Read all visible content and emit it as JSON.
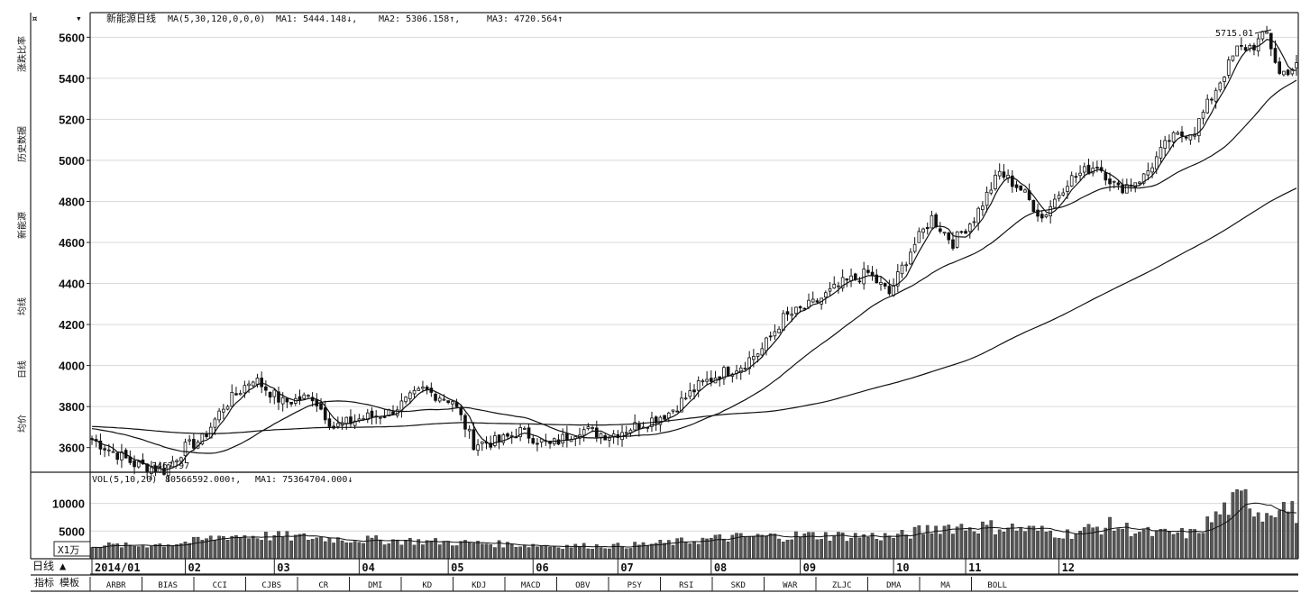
{
  "chart_data": {
    "type": "line",
    "title": "新能源日线",
    "indicator_header": {
      "ma_params": "MA(5,30,120,0,0,0)",
      "ma1": "MA1: 5444.148↓,",
      "ma2": "MA2: 5306.158↑,",
      "ma3": "MA3: 4720.564↑"
    },
    "price_axis": {
      "ylim": [
        3480,
        5720
      ],
      "ticks": [
        3600,
        3800,
        4000,
        4200,
        4400,
        4600,
        4800,
        5000,
        5200,
        5400,
        5600
      ]
    },
    "annotations": {
      "low_label": "3467.97",
      "high_label": "5715.01"
    },
    "close_anchors": [
      {
        "x": 0,
        "y": 3640
      },
      {
        "x": 10,
        "y": 3520
      },
      {
        "x": 17,
        "y": 3490
      },
      {
        "x": 22,
        "y": 3600
      },
      {
        "x": 26,
        "y": 3640
      },
      {
        "x": 31,
        "y": 3800
      },
      {
        "x": 38,
        "y": 3940
      },
      {
        "x": 45,
        "y": 3820
      },
      {
        "x": 52,
        "y": 3850
      },
      {
        "x": 57,
        "y": 3700
      },
      {
        "x": 63,
        "y": 3740
      },
      {
        "x": 70,
        "y": 3770
      },
      {
        "x": 78,
        "y": 3880
      },
      {
        "x": 85,
        "y": 3830
      },
      {
        "x": 90,
        "y": 3620
      },
      {
        "x": 96,
        "y": 3630
      },
      {
        "x": 101,
        "y": 3680
      },
      {
        "x": 108,
        "y": 3610
      },
      {
        "x": 115,
        "y": 3690
      },
      {
        "x": 122,
        "y": 3660
      },
      {
        "x": 130,
        "y": 3720
      },
      {
        "x": 136,
        "y": 3770
      },
      {
        "x": 143,
        "y": 3900
      },
      {
        "x": 148,
        "y": 3960
      },
      {
        "x": 153,
        "y": 4000
      },
      {
        "x": 158,
        "y": 4080
      },
      {
        "x": 163,
        "y": 4230
      },
      {
        "x": 170,
        "y": 4300
      },
      {
        "x": 177,
        "y": 4400
      },
      {
        "x": 183,
        "y": 4450
      },
      {
        "x": 188,
        "y": 4350
      },
      {
        "x": 193,
        "y": 4560
      },
      {
        "x": 198,
        "y": 4720
      },
      {
        "x": 203,
        "y": 4600
      },
      {
        "x": 208,
        "y": 4720
      },
      {
        "x": 214,
        "y": 4940
      },
      {
        "x": 219,
        "y": 4860
      },
      {
        "x": 224,
        "y": 4720
      },
      {
        "x": 230,
        "y": 4900
      },
      {
        "x": 237,
        "y": 4980
      },
      {
        "x": 242,
        "y": 4860
      },
      {
        "x": 248,
        "y": 4920
      },
      {
        "x": 254,
        "y": 5100
      },
      {
        "x": 260,
        "y": 5150
      },
      {
        "x": 265,
        "y": 5350
      },
      {
        "x": 270,
        "y": 5540
      },
      {
        "x": 274,
        "y": 5560
      },
      {
        "x": 277,
        "y": 5620
      },
      {
        "x": 280,
        "y": 5420
      },
      {
        "x": 283,
        "y": 5450
      }
    ],
    "series": [
      {
        "name": "MA1",
        "values": []
      },
      {
        "name": "MA2",
        "values": []
      },
      {
        "name": "MA3",
        "values": []
      }
    ],
    "volume_header": {
      "params": "VOL(5,10,20)",
      "vol": "80566592.000↑,",
      "ma1": "MA1: 75364704.000↓"
    },
    "volume_axis": {
      "ylim": [
        0,
        14000
      ],
      "ticks": [
        5000,
        10000
      ],
      "unit_label": "X1万"
    },
    "volume_anchors": [
      {
        "x": 0,
        "y": 2500
      },
      {
        "x": 10,
        "y": 2300
      },
      {
        "x": 20,
        "y": 2800
      },
      {
        "x": 25,
        "y": 3200
      },
      {
        "x": 32,
        "y": 4200
      },
      {
        "x": 45,
        "y": 4000
      },
      {
        "x": 60,
        "y": 3500
      },
      {
        "x": 75,
        "y": 3200
      },
      {
        "x": 90,
        "y": 2800
      },
      {
        "x": 110,
        "y": 2300
      },
      {
        "x": 125,
        "y": 2300
      },
      {
        "x": 135,
        "y": 2800
      },
      {
        "x": 150,
        "y": 3800
      },
      {
        "x": 170,
        "y": 4200
      },
      {
        "x": 190,
        "y": 4000
      },
      {
        "x": 200,
        "y": 5800
      },
      {
        "x": 215,
        "y": 5700
      },
      {
        "x": 230,
        "y": 4500
      },
      {
        "x": 240,
        "y": 6000
      },
      {
        "x": 250,
        "y": 4500
      },
      {
        "x": 260,
        "y": 4500
      },
      {
        "x": 268,
        "y": 9500
      },
      {
        "x": 272,
        "y": 11000
      },
      {
        "x": 276,
        "y": 8000
      },
      {
        "x": 280,
        "y": 10000
      },
      {
        "x": 284,
        "y": 8000
      }
    ],
    "period_label": "日线",
    "x_tick_labels": [
      "2014/01",
      "02",
      "03",
      "04",
      "05",
      "06",
      "07",
      "08",
      "09",
      "10",
      "11",
      "12"
    ],
    "grid": true,
    "left_vertical_labels": [
      "涨跌比率",
      "历史数据",
      "新能源",
      "均线",
      "日线",
      "均价"
    ]
  },
  "toolbar": {
    "label_a": "指标",
    "label_b": "模板",
    "indicators": [
      "ARBR",
      "BIAS",
      "CCI",
      "CJBS",
      "CR",
      "DMI",
      "KD",
      "KDJ",
      "MACD",
      "OBV",
      "PSY",
      "RSI",
      "SKD",
      "WAR",
      "ZLJC",
      "DMA",
      "MA",
      "BOLL"
    ]
  },
  "colors": {
    "line": "#111111",
    "grid": "#d9d9d9",
    "background": "#ffffff",
    "axis": "#222222"
  }
}
